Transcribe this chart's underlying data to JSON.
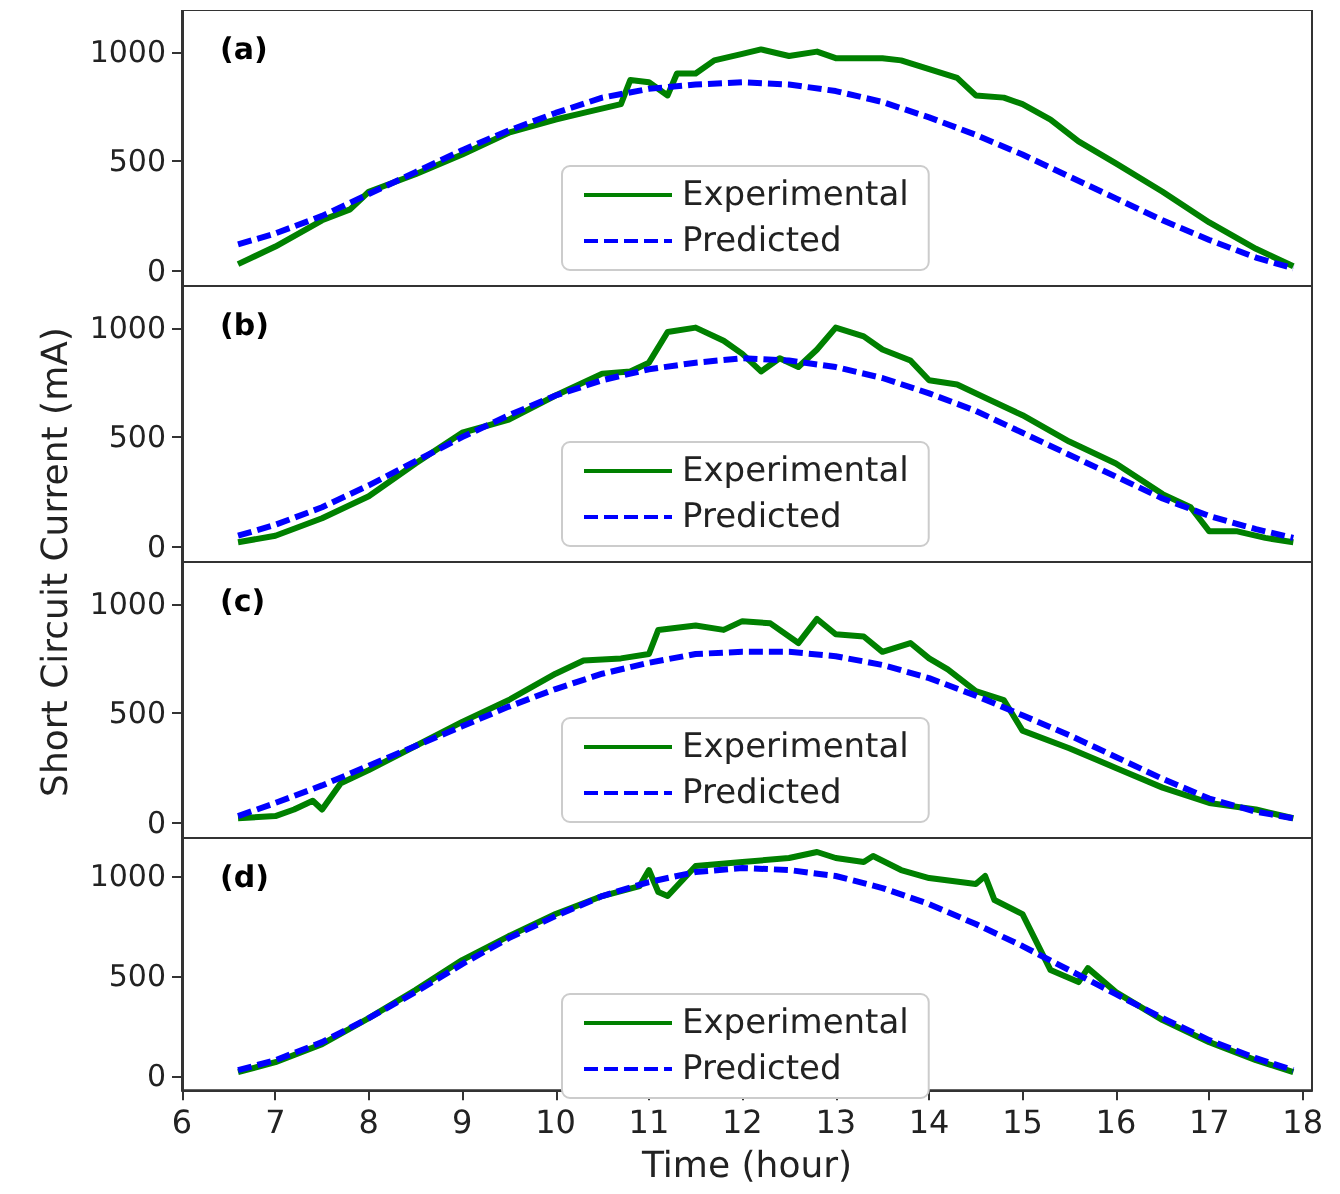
{
  "chart_data": [
    {
      "type": "line",
      "annotations": [
        "(a)"
      ],
      "xlim": [
        6,
        18.1
      ],
      "ylim": [
        -70,
        1190
      ],
      "yticks": [
        0,
        500,
        1000
      ],
      "tick_labels": "y",
      "legend": "bottom",
      "grid": false,
      "marker": "none",
      "series": [
        {
          "name": "Experimental",
          "color": "#008000",
          "line_style": "solid",
          "x": [
            6.6,
            7,
            7.5,
            7.8,
            8,
            8.5,
            9,
            9.5,
            10,
            10.3,
            10.7,
            10.8,
            11,
            11.2,
            11.3,
            11.5,
            11.7,
            12,
            12.2,
            12.5,
            12.8,
            13,
            13.5,
            13.7,
            14,
            14.3,
            14.5,
            14.8,
            15,
            15.3,
            15.6,
            16,
            16.5,
            17,
            17.5,
            17.9
          ],
          "values": [
            30,
            110,
            230,
            280,
            360,
            440,
            530,
            630,
            690,
            720,
            760,
            870,
            860,
            800,
            900,
            900,
            960,
            990,
            1010,
            980,
            1000,
            970,
            970,
            960,
            920,
            880,
            800,
            790,
            760,
            690,
            590,
            490,
            360,
            220,
            100,
            20
          ]
        },
        {
          "name": "Predicted",
          "color": "#0000ff",
          "line_style": "dashed",
          "x": [
            6.6,
            7,
            7.5,
            8,
            8.5,
            9,
            9.5,
            10,
            10.5,
            11,
            11.5,
            12,
            12.5,
            13,
            13.5,
            14,
            14.5,
            15,
            15.5,
            16,
            16.5,
            17,
            17.5,
            17.9
          ],
          "values": [
            120,
            170,
            250,
            350,
            450,
            550,
            640,
            720,
            790,
            830,
            850,
            860,
            850,
            820,
            770,
            700,
            620,
            530,
            430,
            330,
            230,
            140,
            60,
            10
          ]
        }
      ]
    },
    {
      "type": "line",
      "annotations": [
        "(b)"
      ],
      "ylabel": "Short Circuit Current (mA)",
      "xlim": [
        6,
        18.1
      ],
      "ylim": [
        -70,
        1190
      ],
      "yticks": [
        0,
        500,
        1000
      ],
      "tick_labels": "y",
      "legend": "bottom",
      "grid": false,
      "marker": "none",
      "series": [
        {
          "name": "Experimental",
          "color": "#008000",
          "line_style": "solid",
          "x": [
            6.6,
            7,
            7.5,
            8,
            8.5,
            9,
            9.5,
            10,
            10.5,
            10.8,
            11,
            11.2,
            11.5,
            11.8,
            12,
            12.2,
            12.4,
            12.6,
            12.8,
            13,
            13.3,
            13.5,
            13.8,
            14,
            14.3,
            14.6,
            15,
            15.5,
            16,
            16.5,
            16.8,
            17,
            17.3,
            17.6,
            17.9
          ],
          "values": [
            20,
            50,
            130,
            230,
            380,
            520,
            580,
            690,
            790,
            800,
            840,
            980,
            1000,
            940,
            880,
            800,
            860,
            820,
            900,
            1000,
            960,
            900,
            850,
            760,
            740,
            680,
            600,
            480,
            380,
            240,
            180,
            70,
            70,
            40,
            20
          ]
        },
        {
          "name": "Predicted",
          "color": "#0000ff",
          "line_style": "dashed",
          "x": [
            6.6,
            7,
            7.5,
            8,
            8.5,
            9,
            9.5,
            10,
            10.5,
            11,
            11.5,
            12,
            12.5,
            13,
            13.5,
            14,
            14.5,
            15,
            15.5,
            16,
            16.5,
            17,
            17.5,
            17.9
          ],
          "values": [
            50,
            100,
            180,
            280,
            390,
            500,
            600,
            690,
            760,
            810,
            840,
            860,
            850,
            820,
            770,
            700,
            620,
            520,
            420,
            320,
            220,
            140,
            80,
            40
          ]
        }
      ]
    },
    {
      "type": "line",
      "annotations": [
        "(c)"
      ],
      "xlim": [
        6,
        18.1
      ],
      "ylim": [
        -70,
        1190
      ],
      "yticks": [
        0,
        500,
        1000
      ],
      "tick_labels": "y",
      "legend": "bottom",
      "grid": false,
      "marker": "none",
      "series": [
        {
          "name": "Experimental",
          "color": "#008000",
          "line_style": "solid",
          "x": [
            6.6,
            7,
            7.2,
            7.4,
            7.5,
            7.7,
            8,
            8.5,
            9,
            9.5,
            10,
            10.3,
            10.7,
            11,
            11.1,
            11.5,
            11.8,
            12,
            12.3,
            12.6,
            12.8,
            13,
            13.3,
            13.5,
            13.8,
            14,
            14.2,
            14.5,
            14.8,
            15,
            15.5,
            16,
            16.5,
            17,
            17.5,
            17.9
          ],
          "values": [
            20,
            30,
            60,
            100,
            60,
            180,
            240,
            350,
            460,
            560,
            680,
            740,
            750,
            770,
            880,
            900,
            880,
            920,
            910,
            820,
            930,
            860,
            850,
            780,
            820,
            750,
            700,
            600,
            560,
            420,
            340,
            250,
            160,
            90,
            60,
            20
          ]
        },
        {
          "name": "Predicted",
          "color": "#0000ff",
          "line_style": "dashed",
          "x": [
            6.6,
            7,
            7.5,
            8,
            8.5,
            9,
            9.5,
            10,
            10.5,
            11,
            11.5,
            12,
            12.5,
            13,
            13.5,
            14,
            14.5,
            15,
            15.5,
            16,
            16.5,
            17,
            17.5,
            17.9
          ],
          "values": [
            30,
            90,
            170,
            260,
            350,
            440,
            530,
            610,
            680,
            730,
            770,
            780,
            780,
            760,
            720,
            660,
            580,
            490,
            400,
            300,
            200,
            110,
            50,
            20
          ]
        }
      ]
    },
    {
      "type": "line",
      "annotations": [
        "(d)"
      ],
      "xlabel": "Time (hour)",
      "xlim": [
        6,
        18.1
      ],
      "xticks": [
        6,
        7,
        8,
        9,
        10,
        11,
        12,
        13,
        14,
        15,
        16,
        17,
        18
      ],
      "ylim": [
        -70,
        1190
      ],
      "yticks": [
        0,
        500,
        1000
      ],
      "legend": "bottom",
      "grid": false,
      "marker": "none",
      "series": [
        {
          "name": "Experimental",
          "color": "#008000",
          "line_style": "solid",
          "x": [
            6.6,
            7,
            7.5,
            8,
            8.5,
            9,
            9.5,
            10,
            10.5,
            10.9,
            11,
            11.1,
            11.2,
            11.5,
            12,
            12.5,
            12.8,
            13,
            13.3,
            13.4,
            13.7,
            14,
            14.5,
            14.6,
            14.7,
            15,
            15.3,
            15.6,
            15.7,
            16,
            16.5,
            17,
            17.5,
            17.9
          ],
          "values": [
            20,
            70,
            160,
            290,
            430,
            580,
            700,
            810,
            900,
            950,
            1030,
            920,
            900,
            1050,
            1070,
            1090,
            1120,
            1090,
            1070,
            1100,
            1030,
            990,
            960,
            1000,
            880,
            810,
            530,
            470,
            540,
            420,
            280,
            170,
            80,
            20
          ]
        },
        {
          "name": "Predicted",
          "color": "#0000ff",
          "line_style": "dashed",
          "x": [
            6.6,
            7,
            7.5,
            8,
            8.5,
            9,
            9.5,
            10,
            10.5,
            11,
            11.5,
            12,
            12.5,
            13,
            13.5,
            14,
            14.5,
            15,
            15.5,
            16,
            16.5,
            17,
            17.5,
            17.9
          ],
          "values": [
            30,
            80,
            170,
            290,
            420,
            560,
            690,
            800,
            900,
            970,
            1020,
            1040,
            1030,
            1000,
            940,
            860,
            760,
            650,
            530,
            410,
            290,
            180,
            90,
            30
          ]
        }
      ]
    }
  ]
}
